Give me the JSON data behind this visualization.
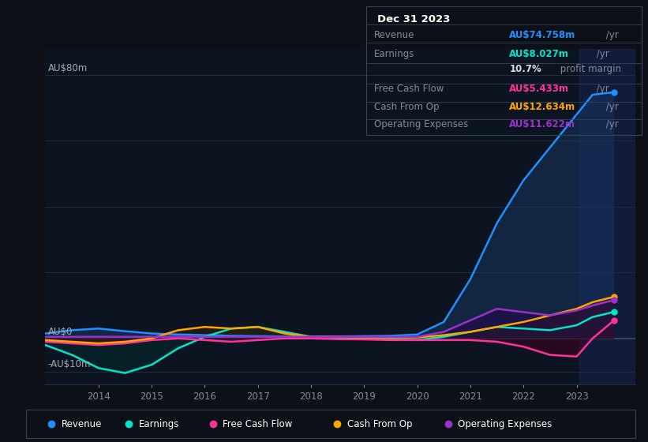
{
  "bg_color": "#0d1117",
  "chart_bg": "#0d1421",
  "grid_color": "#252d3d",
  "years": [
    2013.0,
    2013.5,
    2014.0,
    2014.5,
    2015.0,
    2015.5,
    2016.0,
    2016.5,
    2017.0,
    2017.5,
    2018.0,
    2018.5,
    2019.0,
    2019.5,
    2020.0,
    2020.5,
    2021.0,
    2021.5,
    2022.0,
    2022.5,
    2023.0,
    2023.3,
    2023.7
  ],
  "revenue": [
    1.5,
    2.5,
    3.0,
    2.2,
    1.5,
    1.2,
    1.0,
    0.8,
    0.7,
    0.6,
    0.6,
    0.6,
    0.7,
    0.8,
    1.2,
    5.0,
    18.0,
    35.0,
    48.0,
    58.0,
    68.0,
    74.0,
    74.758
  ],
  "earnings": [
    -2.0,
    -5.0,
    -9.0,
    -10.5,
    -8.0,
    -3.0,
    0.5,
    3.0,
    3.5,
    2.0,
    0.5,
    0.0,
    -0.2,
    -0.3,
    -0.5,
    0.5,
    2.0,
    3.5,
    3.0,
    2.5,
    4.0,
    6.5,
    8.027
  ],
  "free_cash_flow": [
    -1.0,
    -1.5,
    -2.0,
    -1.5,
    -0.5,
    0.0,
    -0.5,
    -1.0,
    -0.5,
    0.0,
    0.0,
    -0.2,
    -0.3,
    -0.5,
    -0.5,
    -0.5,
    -0.5,
    -1.0,
    -2.5,
    -5.0,
    -5.5,
    0.0,
    5.433
  ],
  "cash_from_op": [
    -0.5,
    -1.0,
    -1.5,
    -1.0,
    0.0,
    2.5,
    3.5,
    3.0,
    3.5,
    1.5,
    0.5,
    0.5,
    0.3,
    0.3,
    0.3,
    1.0,
    2.0,
    3.5,
    5.0,
    7.0,
    9.0,
    11.0,
    12.634
  ],
  "op_expenses": [
    0.5,
    0.5,
    0.5,
    0.5,
    0.5,
    0.5,
    0.5,
    0.5,
    0.5,
    0.5,
    0.5,
    0.5,
    0.5,
    0.5,
    0.5,
    2.0,
    5.5,
    9.0,
    8.0,
    7.0,
    8.5,
    10.0,
    11.622
  ],
  "colors": {
    "revenue": "#1e90ff",
    "earnings": "#00e5cc",
    "free_cash_flow": "#ff3399",
    "cash_from_op": "#ffa500",
    "op_expenses": "#9932cc"
  },
  "fill_colors": {
    "revenue": "#1a3a6a",
    "earnings": "#003030",
    "free_cash_flow": "#4a0020",
    "cash_from_op": "#3a2000",
    "op_expenses": "#2a0050"
  },
  "forecast_start": 2023.05,
  "xmin": 2013.0,
  "xmax": 2024.1,
  "ymin": -14,
  "ymax": 88,
  "xticks": [
    2014,
    2015,
    2016,
    2017,
    2018,
    2019,
    2020,
    2021,
    2022,
    2023
  ],
  "ytick_labels": [
    {
      "value": 80,
      "label": "AU$80m"
    },
    {
      "value": 0,
      "label": "AU$0"
    },
    {
      "value": -10,
      "label": "-AU$10m"
    }
  ],
  "grid_y": [
    -10,
    0,
    20,
    40,
    60,
    80
  ],
  "info_box": {
    "title": "Dec 31 2023",
    "rows": [
      {
        "label": "Revenue",
        "value": "AU$74.758m",
        "suffix": " /yr",
        "color": "#1e90ff"
      },
      {
        "label": "Earnings",
        "value": "AU$8.027m",
        "suffix": " /yr",
        "color": "#00e5cc"
      },
      {
        "label": "",
        "value": "10.7%",
        "suffix": " profit margin",
        "color": "#dddddd"
      },
      {
        "label": "Free Cash Flow",
        "value": "AU$5.433m",
        "suffix": " /yr",
        "color": "#ff3399"
      },
      {
        "label": "Cash From Op",
        "value": "AU$12.634m",
        "suffix": " /yr",
        "color": "#ffa500"
      },
      {
        "label": "Operating Expenses",
        "value": "AU$11.622m",
        "suffix": " /yr",
        "color": "#9932cc"
      }
    ]
  },
  "legend": [
    {
      "label": "Revenue",
      "color": "#1e90ff"
    },
    {
      "label": "Earnings",
      "color": "#00e5cc"
    },
    {
      "label": "Free Cash Flow",
      "color": "#ff3399"
    },
    {
      "label": "Cash From Op",
      "color": "#ffa500"
    },
    {
      "label": "Operating Expenses",
      "color": "#9932cc"
    }
  ]
}
